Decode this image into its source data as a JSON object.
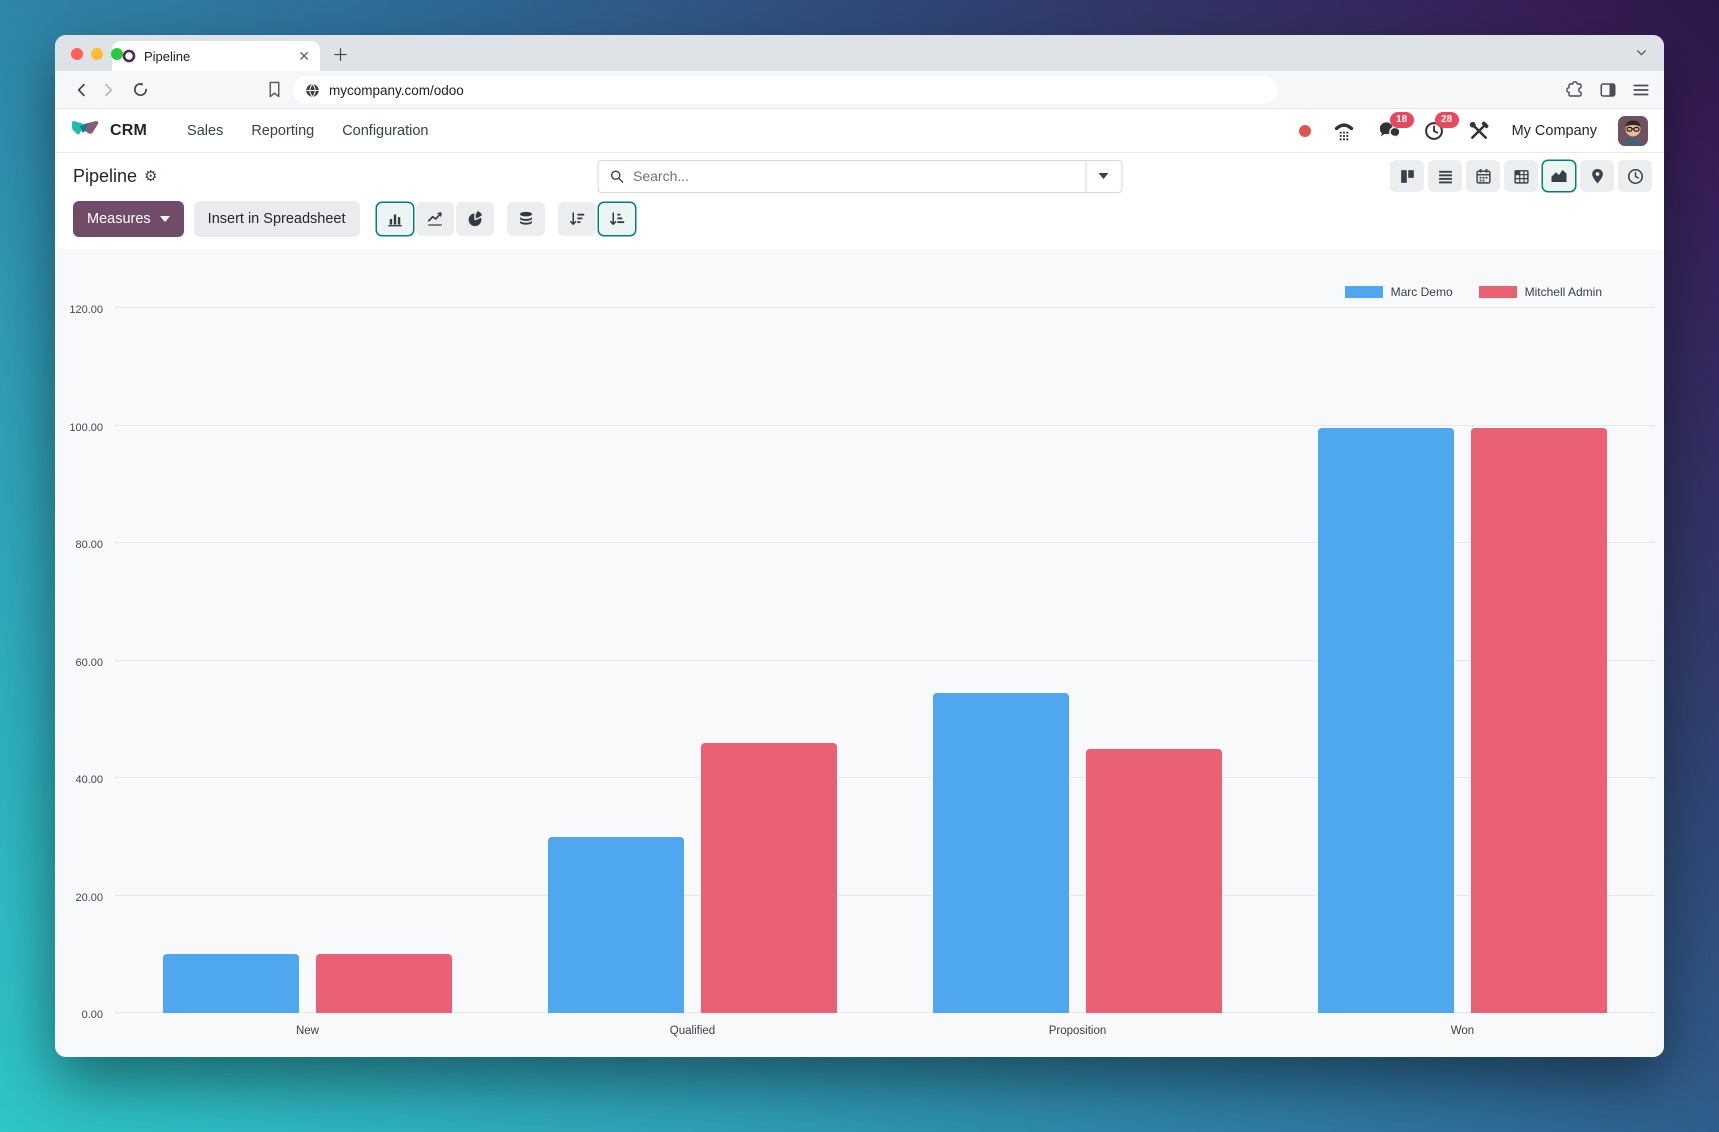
{
  "browser": {
    "traffic_lights": {
      "close": "#ff5f57",
      "minimize": "#febc2e",
      "zoom": "#28c840"
    },
    "tab_title": "Pipeline",
    "url": "mycompany.com/odoo"
  },
  "nav": {
    "app_name": "CRM",
    "menus": [
      {
        "label": "Sales"
      },
      {
        "label": "Reporting"
      },
      {
        "label": "Configuration"
      }
    ],
    "company_name": "My Company",
    "chat_badge": "18",
    "activity_badge": "28"
  },
  "control_panel": {
    "title": "Pipeline",
    "search_placeholder": "Search...",
    "measures_label": "Measures",
    "insert_spreadsheet_label": "Insert in Spreadsheet"
  },
  "view_switcher": {
    "buttons": [
      "kanban",
      "list",
      "calendar",
      "pivot",
      "graph",
      "map",
      "activity"
    ],
    "active": "graph"
  },
  "chart_toolbar": {
    "buttons": [
      "bar-chart",
      "line-chart",
      "pie-chart",
      "stacked",
      "sort-descending",
      "sort-ascending"
    ],
    "active": [
      "bar-chart",
      "sort-ascending"
    ]
  },
  "colors": {
    "accent_teal": "#017E84",
    "primary_button": "#714B67",
    "badge_red": "#e7485b",
    "status_dot": "#e25649",
    "chart_bg": "#f8f9fa",
    "series_blue": "#4FA7F0",
    "series_red": "#EA6175"
  },
  "chart_data": {
    "type": "bar",
    "title": "",
    "xlabel": "",
    "ylabel": "",
    "categories": [
      "New",
      "Qualified",
      "Proposition",
      "Won"
    ],
    "series": [
      {
        "name": "Marc Demo",
        "color": "#4FA7F0",
        "values": [
          10,
          30,
          54.5,
          99.5
        ]
      },
      {
        "name": "Mitchell Admin",
        "color": "#EA6175",
        "values": [
          10,
          46,
          45,
          99.5
        ]
      }
    ],
    "ylim": [
      0,
      120
    ],
    "ytick_step": 20,
    "ytick_format": "0.00",
    "grid": true,
    "legend_position": "top-right"
  }
}
